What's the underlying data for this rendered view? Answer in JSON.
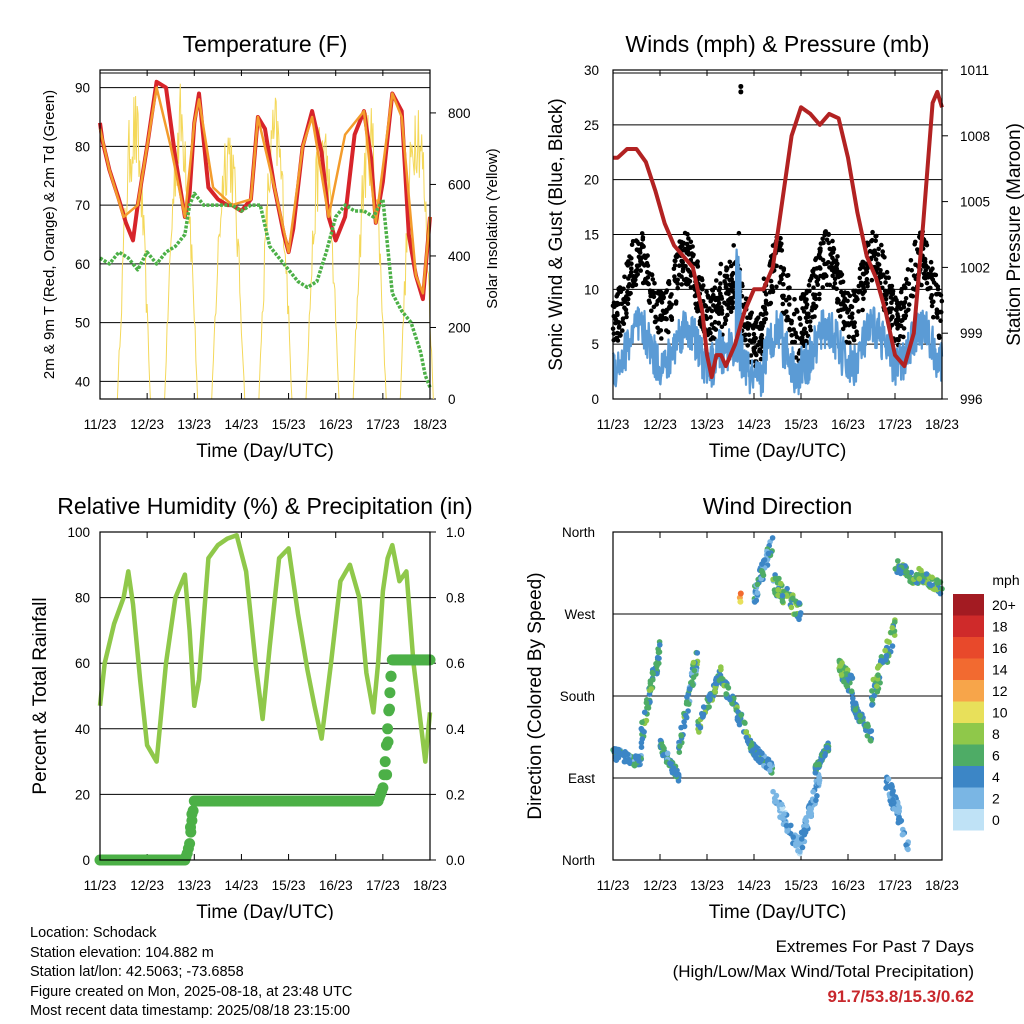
{
  "chart_data": [
    {
      "type": "line",
      "title": "Temperature (F)",
      "xlabel": "Time (Day/UTC)",
      "ylabel": "2m & 9m T (Red, Orange) & 2m Td (Green)",
      "y2label": "Solar Insolation (Yellow)",
      "x_ticks": [
        "11/23",
        "12/23",
        "13/23",
        "14/23",
        "15/23",
        "16/23",
        "17/23",
        "18/23"
      ],
      "xlim": [
        0,
        7
      ],
      "ylim": [
        37,
        93
      ],
      "y_ticks": [
        40,
        50,
        60,
        70,
        80,
        90
      ],
      "y2lim": [
        0,
        920
      ],
      "y2_ticks": [
        0,
        200,
        400,
        600,
        800
      ],
      "grid": true,
      "series": [
        {
          "color": "#d7242a",
          "x": [
            0,
            0.05,
            0.2,
            0.4,
            0.55,
            0.7,
            0.8,
            1.0,
            1.2,
            1.4,
            1.6,
            1.8,
            1.9,
            2.0,
            2.1,
            2.3,
            2.5,
            2.7,
            2.8,
            3.0,
            3.2,
            3.35,
            3.5,
            3.7,
            3.9,
            4.0,
            4.1,
            4.3,
            4.5,
            4.7,
            4.85,
            5.0,
            5.2,
            5.4,
            5.6,
            5.75,
            5.85,
            6.0,
            6.2,
            6.4,
            6.55,
            6.7,
            6.85,
            7.0
          ],
          "values": [
            84,
            81,
            76,
            71,
            67,
            64,
            70,
            80,
            91,
            90,
            78,
            68,
            72,
            84,
            89,
            73,
            71,
            70,
            70,
            69,
            71,
            85,
            83,
            73,
            65,
            62,
            66,
            80,
            86,
            79,
            68,
            64,
            68,
            82,
            86,
            78,
            67,
            74,
            89,
            86,
            65,
            58,
            54,
            68
          ]
        },
        {
          "color": "#f39c2c",
          "x": [
            0,
            0.2,
            0.5,
            0.8,
            1.0,
            1.2,
            1.5,
            1.8,
            2.0,
            2.1,
            2.4,
            2.8,
            3.2,
            3.35,
            3.7,
            4.0,
            4.3,
            4.5,
            4.85,
            5.2,
            5.6,
            5.85,
            6.2,
            6.4,
            6.7,
            6.85,
            7.0
          ],
          "values": [
            83,
            76,
            68,
            70,
            80,
            90,
            80,
            68,
            84,
            88,
            73,
            70,
            71,
            85,
            73,
            62,
            80,
            85,
            68,
            82,
            86,
            67,
            89,
            85,
            58,
            55,
            68
          ]
        },
        {
          "color": "#4cb047",
          "x": [
            0,
            0.2,
            0.4,
            0.6,
            0.8,
            1.0,
            1.2,
            1.4,
            1.6,
            1.8,
            1.9,
            2.0,
            2.2,
            2.5,
            2.8,
            3.0,
            3.2,
            3.4,
            3.6,
            3.8,
            4.0,
            4.2,
            4.4,
            4.6,
            4.8,
            5.0,
            5.2,
            5.4,
            5.6,
            5.8,
            6.0,
            6.2,
            6.4,
            6.6,
            6.8,
            6.9,
            7.0
          ],
          "values": [
            61,
            60,
            62,
            61,
            59,
            62,
            60,
            62,
            63,
            65,
            70,
            72,
            70,
            70,
            70,
            69,
            70,
            70,
            63,
            61,
            59,
            57,
            56,
            57,
            62,
            68,
            70,
            69,
            69,
            68,
            71,
            55,
            52,
            50,
            45,
            41,
            39
          ]
        }
      ],
      "solar_peak_days": [
        0.72,
        1.72,
        2.72,
        3.72,
        4.72,
        5.72,
        6.72
      ]
    },
    {
      "type": "scatter",
      "title": "Winds (mph) & Pressure (mb)",
      "xlabel": "Time (Day/UTC)",
      "ylabel": "Sonic Wind & Gust (Blue, Black)",
      "y2label": "Station Pressure (Maroon)",
      "x_ticks": [
        "11/23",
        "12/23",
        "13/23",
        "14/23",
        "15/23",
        "16/23",
        "17/23",
        "18/23"
      ],
      "xlim": [
        0,
        7
      ],
      "ylim": [
        0,
        30
      ],
      "y_ticks": [
        0,
        5,
        10,
        15,
        20,
        25,
        30
      ],
      "y2lim": [
        996,
        1011
      ],
      "y2_ticks": [
        996,
        999,
        1002,
        1005,
        1008,
        1011
      ],
      "grid": true,
      "pressure": {
        "color": "#b22222",
        "x": [
          0,
          0.1,
          0.3,
          0.5,
          0.7,
          0.9,
          1.1,
          1.3,
          1.5,
          1.7,
          1.9,
          2.0,
          2.1,
          2.2,
          2.3,
          2.4,
          2.6,
          2.8,
          3.0,
          3.2,
          3.4,
          3.6,
          3.8,
          4.0,
          4.2,
          4.4,
          4.6,
          4.8,
          5.0,
          5.2,
          5.4,
          5.6,
          5.8,
          6.0,
          6.2,
          6.4,
          6.6,
          6.8,
          6.9,
          7.0
        ],
        "values": [
          1007,
          1007,
          1007.4,
          1007.4,
          1006.8,
          1005.5,
          1004,
          1003,
          1002.5,
          1002,
          1000,
          998,
          997,
          998,
          998,
          997.5,
          998.5,
          1000,
          1001,
          1001,
          1002,
          1005,
          1008,
          1009.3,
          1009,
          1008.5,
          1009,
          1008.8,
          1007,
          1004.5,
          1002.5,
          1001.5,
          1000,
          998,
          997.5,
          999,
          1004,
          1009.5,
          1010,
          1009.3
        ]
      },
      "gust": {
        "color": "#000000"
      },
      "wind": {
        "color": "#5b9bd5"
      },
      "gust_max": 28.5
    },
    {
      "type": "line",
      "title": "Relative Humidity (%) & Precipitation (in)",
      "xlabel": "Time (Day/UTC)",
      "ylabel": "Percent & Total Rainfall",
      "x_ticks": [
        "11/23",
        "12/23",
        "13/23",
        "14/23",
        "15/23",
        "16/23",
        "17/23",
        "18/23"
      ],
      "xlim": [
        0,
        7
      ],
      "ylim": [
        0,
        100
      ],
      "y_ticks": [
        0,
        20,
        40,
        60,
        80,
        100
      ],
      "y2lim": [
        0,
        1.0
      ],
      "y2_ticks": [
        "0.0",
        "0.2",
        "0.4",
        "0.6",
        "0.8",
        "1.0"
      ],
      "grid": true,
      "series": [
        {
          "color": "#8fc84a",
          "x": [
            0,
            0.1,
            0.3,
            0.5,
            0.6,
            0.7,
            0.85,
            1.0,
            1.2,
            1.4,
            1.6,
            1.8,
            1.9,
            2.0,
            2.1,
            2.3,
            2.5,
            2.7,
            2.9,
            3.1,
            3.3,
            3.45,
            3.6,
            3.8,
            4.0,
            4.2,
            4.4,
            4.55,
            4.7,
            4.9,
            5.1,
            5.3,
            5.5,
            5.65,
            5.8,
            5.9,
            6.0,
            6.1,
            6.2,
            6.35,
            6.5,
            6.65,
            6.8,
            6.9,
            7.0
          ],
          "values": [
            47,
            60,
            72,
            80,
            88,
            78,
            55,
            35,
            30,
            60,
            80,
            87,
            70,
            47,
            55,
            92,
            96,
            98,
            99,
            88,
            60,
            43,
            65,
            92,
            95,
            75,
            58,
            47,
            37,
            60,
            85,
            90,
            80,
            57,
            45,
            60,
            82,
            92,
            96,
            85,
            88,
            60,
            42,
            30,
            45
          ]
        },
        {
          "color": "#4cb047",
          "x": [
            0,
            0.5,
            1.0,
            1.5,
            1.8,
            1.85,
            1.9,
            1.95,
            2.0,
            2.3,
            3.0,
            4.0,
            5.0,
            5.9,
            6.0,
            6.05,
            6.1,
            6.15,
            6.2,
            6.6,
            7.0
          ],
          "values": [
            0,
            0,
            0,
            0,
            0,
            2,
            5,
            12,
            18,
            18,
            18,
            18,
            18,
            18,
            22,
            30,
            40,
            51,
            61,
            61,
            61
          ]
        }
      ]
    },
    {
      "type": "scatter",
      "title": "Wind Direction",
      "xlabel": "Time (Day/UTC)",
      "ylabel": "Direction (Colored By Speed)",
      "x_ticks": [
        "11/23",
        "12/23",
        "13/23",
        "14/23",
        "15/23",
        "16/23",
        "17/23",
        "18/23"
      ],
      "xlim": [
        0,
        7
      ],
      "y_ticks": [
        "North",
        "East",
        "South",
        "West",
        "North"
      ],
      "grid": true,
      "legend": {
        "title": "mph",
        "labels": [
          "20+",
          "18",
          "16",
          "14",
          "12",
          "10",
          "8",
          "6",
          "4",
          "2",
          "0"
        ],
        "colors": [
          "#a31b22",
          "#cf2a2a",
          "#e8492b",
          "#f26a30",
          "#f7a54a",
          "#e8e05a",
          "#8fc84a",
          "#4eac66",
          "#3c86c6",
          "#7ab6e4",
          "#bfe2f6"
        ]
      }
    }
  ],
  "info": {
    "location": "Location: Schodack",
    "elevation": "Station elevation: 104.882 m",
    "latlon": "Station lat/lon: 42.5063; -73.6858",
    "created": "Figure created on Mon, 2025-08-18, at 23:48 UTC",
    "recent": "Most recent data timestamp: 2025/08/18 23:15:00"
  },
  "extremes": {
    "line1": "Extremes For Past 7 Days",
    "line2": "(High/Low/Max Wind/Total Precipitation)",
    "values": "91.7/53.8/15.3/0.62"
  }
}
